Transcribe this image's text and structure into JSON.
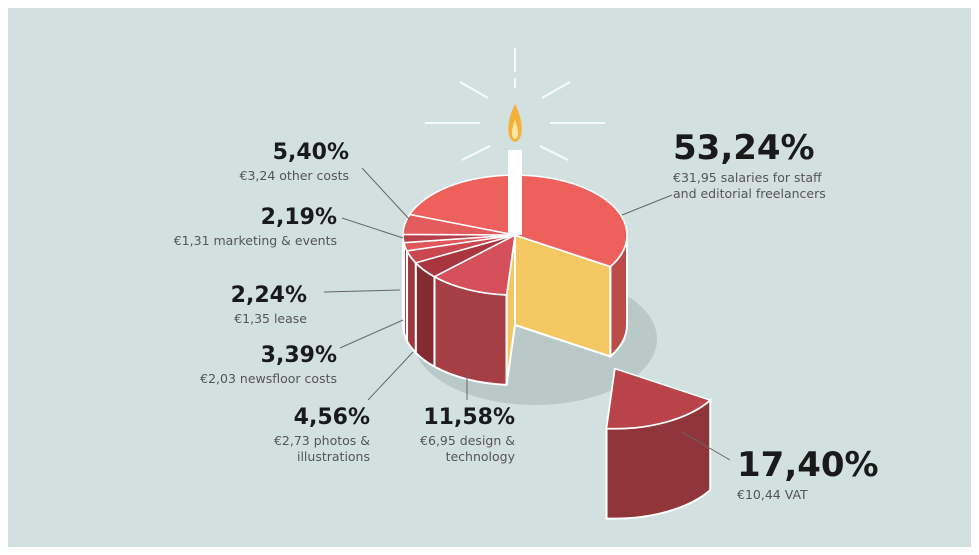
{
  "chart_data": {
    "type": "pie",
    "categories": [
      "€31,95 salaries for staff and editorial freelancers",
      "€10,44 VAT",
      "€6,95 design & technology",
      "€2,73 photos & illustrations",
      "€2,03 newsfloor costs",
      "€1,35 lease",
      "€1,31 marketing & events",
      "€3,24 other costs"
    ],
    "values": [
      53.24,
      17.4,
      11.58,
      4.56,
      3.39,
      2.24,
      2.19,
      5.4
    ],
    "value_labels": [
      "53,24%",
      "17,40%",
      "11,58%",
      "4,56%",
      "3,39%",
      "2,24%",
      "2,19%",
      "5,40%"
    ],
    "colors": [
      "#ee605c",
      "#b8444a",
      "#d5505a",
      "#a9363f",
      "#c9474f",
      "#e0585c",
      "#b6404a",
      "#e45b5d"
    ]
  }
}
